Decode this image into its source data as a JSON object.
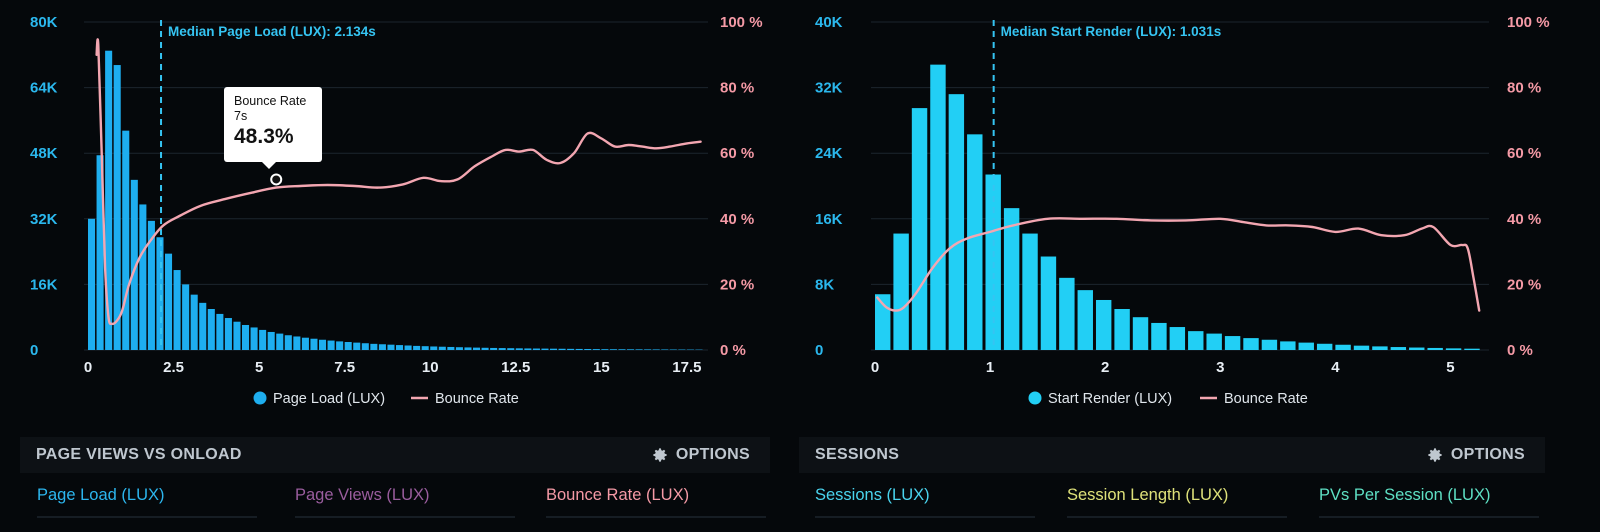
{
  "colors": {
    "bar_left": "#1eaeef",
    "bar_right": "#22cff5",
    "bounce": "#f3a6b1",
    "median": "#35c4f2",
    "metric_blue": "#2cb6ee",
    "metric_purple": "#9a5d9e",
    "metric_pink": "#f59aa6",
    "metric_cyan": "#4ad4ee",
    "metric_yellow": "#dfe27a",
    "metric_green": "#5ee0c4"
  },
  "left": {
    "median_label": "Median Page Load (LUX): 2.134s",
    "legend": {
      "bars": "Page Load (LUX)",
      "line": "Bounce Rate"
    },
    "tooltip": {
      "title": "Bounce Rate",
      "sub": "7s",
      "value": "48.3%"
    },
    "bottom": {
      "title": "PAGE VIEWS VS ONLOAD",
      "options": "OPTIONS"
    },
    "metrics": [
      "Page Load (LUX)",
      "Page Views (LUX)",
      "Bounce Rate (LUX)"
    ],
    "chart_data": {
      "type": "bar",
      "x_ticks": [
        "0",
        "2.5",
        "5",
        "7.5",
        "10",
        "12.5",
        "15",
        "17.5"
      ],
      "x_tick_values": [
        0,
        2.5,
        5,
        7.5,
        10,
        12.5,
        15,
        17.5
      ],
      "xlim": [
        0,
        18
      ],
      "y_ticks": [
        "0",
        "16K",
        "32K",
        "48K",
        "64K",
        "80K"
      ],
      "ylim": [
        0,
        80000
      ],
      "y2_ticks": [
        "0 %",
        "20 %",
        "40 %",
        "60 %",
        "80 %",
        "100 %"
      ],
      "y2lim": [
        0,
        100
      ],
      "bin_width": 0.25,
      "bins_start": 0,
      "bar_values": [
        32000,
        47500,
        73000,
        69500,
        53500,
        41500,
        35500,
        31500,
        27500,
        23500,
        19500,
        16000,
        13500,
        11500,
        10000,
        8800,
        7800,
        6900,
        6100,
        5500,
        4900,
        4400,
        4000,
        3600,
        3300,
        3000,
        2750,
        2500,
        2300,
        2100,
        1950,
        1800,
        1650,
        1500,
        1400,
        1300,
        1200,
        1100,
        1000,
        930,
        860,
        800,
        740,
        680,
        630,
        580,
        540,
        500,
        470,
        440,
        410,
        380,
        360,
        340,
        320,
        300,
        280,
        260,
        240,
        220,
        200,
        190,
        180,
        170,
        160,
        150,
        140,
        130,
        120,
        110,
        100,
        90
      ],
      "median_x": 2.134,
      "bounce_series": {
        "name": "Bounce Rate",
        "x": [
          0.25,
          0.3,
          0.4,
          0.5,
          0.6,
          0.7,
          0.85,
          1.0,
          1.2,
          1.5,
          1.8,
          2.2,
          2.7,
          3.3,
          4.0,
          4.8,
          5.5,
          6.2,
          7.0,
          7.8,
          8.5,
          9.2,
          9.8,
          10.3,
          10.8,
          11.3,
          11.8,
          12.2,
          12.6,
          13.0,
          13.4,
          13.8,
          14.2,
          14.6,
          15.0,
          15.4,
          15.8,
          16.2,
          16.6,
          17.0,
          17.5,
          17.9
        ],
        "y": [
          90,
          93,
          60,
          25,
          10,
          8,
          9,
          12,
          20,
          28,
          33,
          38,
          41,
          44,
          46,
          48,
          49.5,
          50,
          50.3,
          50,
          49.5,
          50.5,
          52.5,
          51.5,
          52,
          56,
          59,
          61,
          60.5,
          61,
          58,
          57,
          60,
          66,
          64.5,
          62,
          62.5,
          62,
          61.5,
          62,
          63,
          63.5
        ]
      }
    }
  },
  "right": {
    "median_label": "Median Start Render (LUX): 1.031s",
    "legend": {
      "bars": "Start Render (LUX)",
      "line": "Bounce Rate"
    },
    "bottom": {
      "title": "SESSIONS",
      "options": "OPTIONS"
    },
    "metrics": [
      "Sessions (LUX)",
      "Session Length (LUX)",
      "PVs Per Session (LUX)"
    ],
    "chart_data": {
      "type": "bar",
      "x_ticks": [
        "0",
        "1",
        "2",
        "3",
        "4",
        "5"
      ],
      "x_tick_values": [
        0,
        1,
        2,
        3,
        4,
        5
      ],
      "xlim": [
        0,
        5.3
      ],
      "y_ticks": [
        "0",
        "8K",
        "16K",
        "24K",
        "32K",
        "40K"
      ],
      "ylim": [
        0,
        40000
      ],
      "y2_ticks": [
        "0 %",
        "20 %",
        "40 %",
        "60 %",
        "80 %",
        "100 %"
      ],
      "y2lim": [
        0,
        100
      ],
      "bin_width": 0.16,
      "bins_start": 0,
      "bar_values": [
        6800,
        14200,
        29500,
        34800,
        31200,
        26300,
        21400,
        17300,
        14200,
        11400,
        8800,
        7300,
        6100,
        5000,
        4000,
        3300,
        2800,
        2300,
        2000,
        1700,
        1450,
        1250,
        1050,
        900,
        760,
        640,
        530,
        440,
        360,
        300,
        250,
        200,
        160
      ],
      "median_x": 1.031,
      "bounce_series": {
        "name": "Bounce Rate",
        "x": [
          0.02,
          0.1,
          0.18,
          0.25,
          0.35,
          0.5,
          0.65,
          0.8,
          1.0,
          1.2,
          1.5,
          1.8,
          2.1,
          2.4,
          2.7,
          3.0,
          3.2,
          3.4,
          3.6,
          3.8,
          4.0,
          4.2,
          4.4,
          4.6,
          4.75,
          4.85,
          5.0,
          5.1,
          5.15,
          5.2,
          5.25
        ],
        "y": [
          16,
          13,
          12,
          13,
          17,
          25,
          31,
          34,
          36,
          38,
          40,
          40,
          40,
          39.5,
          39.5,
          40,
          39,
          38,
          38,
          37.5,
          36,
          37,
          35,
          35,
          37,
          37.5,
          32,
          32,
          31,
          22,
          12
        ]
      }
    }
  }
}
